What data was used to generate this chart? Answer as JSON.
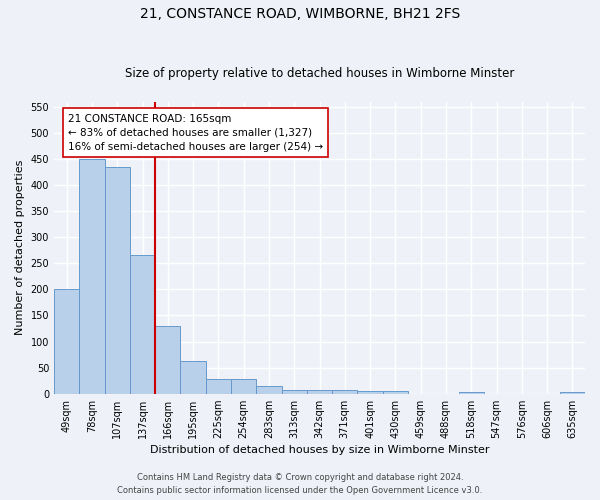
{
  "title": "21, CONSTANCE ROAD, WIMBORNE, BH21 2FS",
  "subtitle": "Size of property relative to detached houses in Wimborne Minster",
  "xlabel": "Distribution of detached houses by size in Wimborne Minster",
  "ylabel": "Number of detached properties",
  "footer_line1": "Contains HM Land Registry data © Crown copyright and database right 2024.",
  "footer_line2": "Contains public sector information licensed under the Open Government Licence v3.0.",
  "categories": [
    "49sqm",
    "78sqm",
    "107sqm",
    "137sqm",
    "166sqm",
    "195sqm",
    "225sqm",
    "254sqm",
    "283sqm",
    "313sqm",
    "342sqm",
    "371sqm",
    "401sqm",
    "430sqm",
    "459sqm",
    "488sqm",
    "518sqm",
    "547sqm",
    "576sqm",
    "606sqm",
    "635sqm"
  ],
  "values": [
    200,
    450,
    435,
    265,
    130,
    62,
    28,
    28,
    14,
    8,
    8,
    8,
    5,
    5,
    0,
    0,
    4,
    0,
    0,
    0,
    4
  ],
  "bar_color": "#b8d0ea",
  "bar_edge_color": "#6699cc",
  "highlight_color": "#cc0000",
  "property_label": "21 CONSTANCE ROAD: 165sqm",
  "annotation_line1": "← 83% of detached houses are smaller (1,327)",
  "annotation_line2": "16% of semi-detached houses are larger (254) →",
  "ylim": [
    0,
    560
  ],
  "yticks": [
    0,
    50,
    100,
    150,
    200,
    250,
    300,
    350,
    400,
    450,
    500,
    550
  ],
  "bg_color": "#eef2f8",
  "grid_color": "#ffffff",
  "annotation_box_color": "#ffffff",
  "annotation_box_edge": "#cc0000",
  "title_fontsize": 10,
  "subtitle_fontsize": 8.5,
  "xlabel_fontsize": 8,
  "ylabel_fontsize": 8,
  "tick_fontsize": 7,
  "footer_fontsize": 6,
  "annot_fontsize": 7.5
}
